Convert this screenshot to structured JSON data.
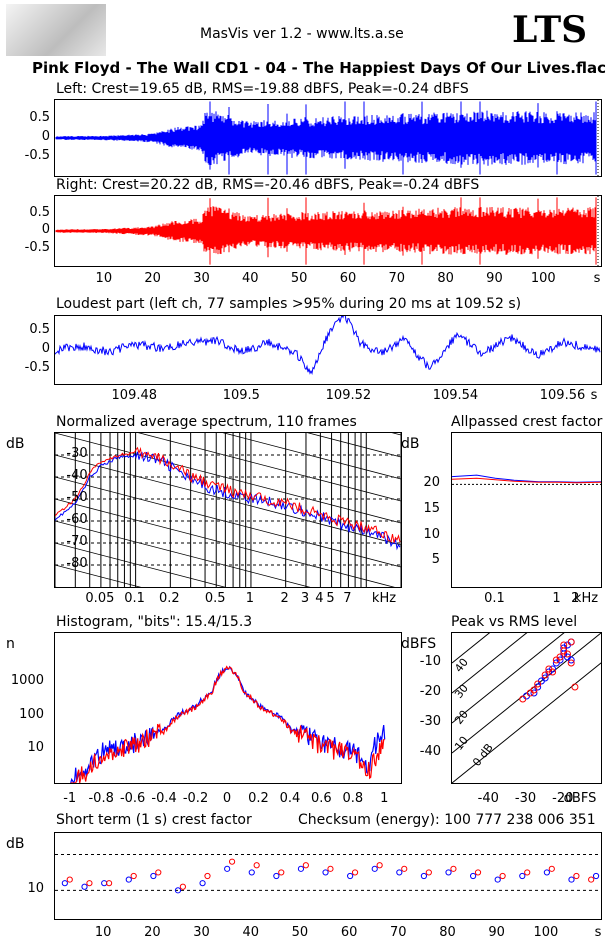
{
  "header": {
    "app_version": "MasVis ver 1.2 - www.lts.a.se",
    "brand": "LTS",
    "file_title": "Pink Floyd - The Wall CD1 - 04 - The Happiest Days Of Our Lives.flac"
  },
  "colors": {
    "left": "#0000ff",
    "right": "#ff0000"
  },
  "waveform": {
    "left_label": "Left: Crest=19.65 dB, RMS=-19.88 dBFS, Peak=-0.24 dBFS",
    "right_label": "Right: Crest=20.22 dB, RMS=-20.46 dBFS, Peak=-0.24 dBFS",
    "y_ticks": [
      "0.5",
      "0",
      "-0.5"
    ],
    "x_ticks": [
      "10",
      "20",
      "30",
      "40",
      "50",
      "60",
      "70",
      "80",
      "90",
      "100",
      "s"
    ]
  },
  "loudest": {
    "label": "Loudest part (left  ch, 77 samples >95% during 20 ms at 109.52 s)",
    "y_ticks": [
      "0.5",
      "0",
      "-0.5"
    ],
    "x_ticks": [
      "109.48",
      "109.5",
      "109.52",
      "109.54",
      "109.56",
      "s"
    ]
  },
  "spectrum": {
    "label": "Normalized average spectrum, 110 frames",
    "ylabel": "dB",
    "y_ticks": [
      "-30",
      "-40",
      "-50",
      "-60",
      "-70",
      "-80"
    ],
    "x_ticks": [
      "0.05",
      "0.1",
      "0.2",
      "0.5",
      "1",
      "2",
      "3",
      "4",
      "5",
      "7",
      "kHz"
    ]
  },
  "allpassed": {
    "label": "Allpassed crest factor",
    "ylabel": "dB",
    "y_ticks": [
      "20",
      "15",
      "10",
      "5"
    ],
    "x_ticks": [
      "0.1",
      "1",
      "2",
      "kHz"
    ]
  },
  "histogram": {
    "label": "Histogram, \"bits\": 15.4/15.3",
    "ylabel": "n",
    "y_ticks": [
      "1000",
      "100",
      "10"
    ],
    "x_ticks": [
      "-1",
      "-0.8",
      "-0.6",
      "-0.4",
      "-0.2",
      "0",
      "0.2",
      "0.4",
      "0.6",
      "0.8",
      "1"
    ]
  },
  "peak_rms": {
    "label": "Peak vs RMS level",
    "ylabel": "dBFS",
    "y_ticks": [
      "-10",
      "-20",
      "-30",
      "-40"
    ],
    "x_ticks": [
      "-40",
      "-30",
      "-20",
      "dBFS"
    ],
    "diag_labels": [
      "40",
      "30",
      "20",
      "10",
      "0 dB"
    ]
  },
  "short_term": {
    "label": "Short term (1 s) crest factor",
    "checksum": "Checksum (energy):   100 777 238 006 351",
    "ylabel": "dB",
    "y_ticks": [
      "10"
    ],
    "x_ticks": [
      "10",
      "20",
      "30",
      "40",
      "50",
      "60",
      "70",
      "80",
      "90",
      "100",
      "s"
    ]
  },
  "chart_data": [
    {
      "type": "line",
      "title": "Left: Crest=19.65 dB, RMS=-19.88 dBFS, Peak=-0.24 dBFS",
      "xlabel": "s",
      "xlim": [
        0,
        111
      ],
      "ylim": [
        -1,
        1
      ],
      "series": [
        {
          "name": "Left",
          "envelope_x": [
            0,
            10,
            20,
            25,
            30,
            31,
            40,
            50,
            60,
            70,
            80,
            90,
            100,
            110
          ],
          "envelope_y": [
            0.05,
            0.06,
            0.12,
            0.3,
            0.35,
            0.8,
            0.45,
            0.55,
            0.6,
            0.65,
            0.7,
            0.75,
            0.7,
            0.7
          ]
        }
      ]
    },
    {
      "type": "line",
      "title": "Right: Crest=20.22 dB, RMS=-20.46 dBFS, Peak=-0.24 dBFS",
      "xlabel": "s",
      "xlim": [
        0,
        111
      ],
      "ylim": [
        -1,
        1
      ],
      "series": [
        {
          "name": "Right",
          "envelope_x": [
            0,
            10,
            20,
            25,
            30,
            31,
            40,
            50,
            60,
            70,
            80,
            90,
            100,
            110
          ],
          "envelope_y": [
            0.05,
            0.06,
            0.14,
            0.32,
            0.38,
            0.8,
            0.45,
            0.55,
            0.6,
            0.62,
            0.7,
            0.7,
            0.68,
            0.7
          ]
        }
      ]
    },
    {
      "type": "line",
      "title": "Loudest part (left  ch, 77 samples >95% during 20 ms at 109.52 s)",
      "xlabel": "s",
      "xlim": [
        109.465,
        109.567
      ],
      "ylim": [
        -0.9,
        0.9
      ],
      "x": [
        109.465,
        109.47,
        109.475,
        109.48,
        109.485,
        109.49,
        109.495,
        109.5,
        109.505,
        109.51,
        109.513,
        109.516,
        109.519,
        109.522,
        109.526,
        109.53,
        109.535,
        109.54,
        109.545,
        109.55,
        109.555,
        109.56,
        109.567
      ],
      "series": [
        {
          "name": "Left",
          "values": [
            0,
            0.1,
            -0.05,
            0.15,
            0.05,
            0.2,
            0.25,
            -0.05,
            0.2,
            -0.1,
            -0.6,
            0.4,
            0.95,
            0.2,
            -0.1,
            0.3,
            -0.5,
            0.4,
            -0.1,
            0.35,
            -0.15,
            0.2,
            0.0
          ]
        }
      ]
    },
    {
      "type": "line",
      "title": "Normalized average spectrum, 110 frames",
      "xlabel": "kHz",
      "ylabel": "dB",
      "xscale": "log",
      "xlim": [
        0.02,
        20
      ],
      "ylim": [
        -90,
        -20
      ],
      "x": [
        0.02,
        0.03,
        0.04,
        0.05,
        0.07,
        0.1,
        0.15,
        0.2,
        0.3,
        0.5,
        0.7,
        1,
        2,
        3,
        5,
        7,
        10,
        15,
        20
      ],
      "series": [
        {
          "name": "Left",
          "values": [
            -59,
            -52,
            -40,
            -35,
            -31,
            -30,
            -32,
            -35,
            -42,
            -46,
            -48,
            -50,
            -53,
            -56,
            -60,
            -63,
            -65,
            -68,
            -72
          ]
        },
        {
          "name": "Right",
          "values": [
            -57,
            -50,
            -38,
            -33,
            -30,
            -29,
            -31,
            -34,
            -40,
            -44,
            -47,
            -49,
            -52,
            -55,
            -59,
            -61,
            -63,
            -66,
            -70
          ]
        }
      ]
    },
    {
      "type": "line",
      "title": "Allpassed crest factor",
      "xlabel": "kHz",
      "ylabel": "dB",
      "xscale": "log",
      "xlim": [
        0.02,
        5
      ],
      "ylim": [
        0,
        30
      ],
      "x": [
        0.02,
        0.05,
        0.1,
        0.2,
        0.5,
        1,
        2,
        5
      ],
      "series": [
        {
          "name": "Left",
          "values": [
            21.5,
            21.8,
            21.2,
            20.8,
            20.5,
            20.5,
            20.4,
            20.5
          ]
        },
        {
          "name": "Right",
          "values": [
            21.0,
            21.2,
            20.9,
            20.6,
            20.4,
            20.4,
            20.3,
            20.4
          ]
        }
      ]
    },
    {
      "type": "line",
      "title": "Histogram, \"bits\": 15.4/15.3",
      "ylabel": "n",
      "yscale": "log",
      "xlim": [
        -1.1,
        1.1
      ],
      "ylim": [
        1,
        30000
      ],
      "x": [
        -1,
        -0.9,
        -0.8,
        -0.6,
        -0.4,
        -0.2,
        -0.1,
        0,
        0.1,
        0.2,
        0.4,
        0.6,
        0.8,
        0.9,
        1
      ],
      "series": [
        {
          "name": "Left",
          "values": [
            1,
            3,
            8,
            15,
            40,
            200,
            500,
            3000,
            500,
            200,
            40,
            15,
            8,
            3,
            30
          ]
        },
        {
          "name": "Right",
          "values": [
            1,
            2,
            6,
            12,
            35,
            180,
            480,
            2900,
            480,
            180,
            35,
            12,
            6,
            2,
            12
          ]
        }
      ]
    },
    {
      "type": "scatter",
      "title": "Peak vs RMS level",
      "xlabel": "dBFS",
      "ylabel": "dBFS",
      "xlim": [
        -50,
        -10
      ],
      "ylim": [
        -50,
        0
      ],
      "series": [
        {
          "name": "Left",
          "x": [
            -30,
            -28,
            -27,
            -26,
            -25,
            -24,
            -23,
            -22,
            -21,
            -20,
            -20,
            -19,
            -19,
            -18,
            -18
          ],
          "y": [
            -21,
            -20,
            -18,
            -16,
            -15,
            -13,
            -12,
            -10,
            -9,
            -7,
            -5,
            -8,
            -4,
            -9,
            -3
          ]
        },
        {
          "name": "Right",
          "x": [
            -31,
            -29,
            -28,
            -27,
            -25,
            -24,
            -23,
            -22,
            -21,
            -20,
            -20,
            -19,
            -18,
            -18,
            -17
          ],
          "y": [
            -22,
            -20,
            -19,
            -17,
            -14,
            -12,
            -13,
            -9,
            -8,
            -6,
            -4,
            -7,
            -3,
            -10,
            -18
          ]
        }
      ]
    },
    {
      "type": "scatter",
      "title": "Short term (1 s) crest factor",
      "xlabel": "s",
      "ylabel": "dB",
      "xlim": [
        0,
        111
      ],
      "ylim": [
        2,
        26
      ],
      "series": [
        {
          "name": "Left",
          "x": [
            2,
            6,
            10,
            15,
            20,
            25,
            30,
            35,
            40,
            45,
            50,
            55,
            60,
            65,
            70,
            75,
            80,
            85,
            90,
            95,
            100,
            105,
            110
          ],
          "y": [
            12,
            11,
            12,
            13,
            14,
            10,
            12,
            16,
            15,
            14,
            16,
            15,
            14,
            16,
            15,
            14,
            15,
            14,
            13,
            14,
            15,
            13,
            14
          ]
        },
        {
          "name": "Right",
          "x": [
            3,
            7,
            11,
            16,
            21,
            26,
            31,
            36,
            41,
            46,
            51,
            56,
            61,
            66,
            71,
            76,
            81,
            86,
            91,
            96,
            101,
            106,
            109
          ],
          "y": [
            13,
            12,
            12,
            14,
            15,
            11,
            14,
            18,
            17,
            15,
            17,
            16,
            15,
            17,
            16,
            15,
            16,
            15,
            14,
            15,
            16,
            14,
            13
          ]
        }
      ]
    }
  ]
}
